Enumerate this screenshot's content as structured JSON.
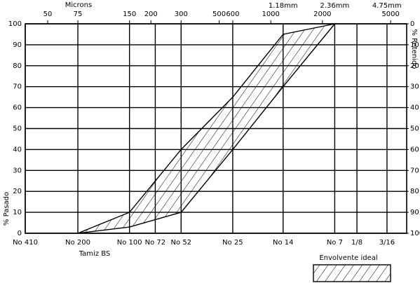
{
  "chart_data": {
    "type": "envelope",
    "x_title": "Microns",
    "x_bottom_title": "Tamiz BS",
    "y_title": "% Pasado",
    "y2_title": "% Retenido",
    "x": [
      75,
      150,
      300,
      600,
      1180,
      2360
    ],
    "series": [
      {
        "color": "#000000",
        "values": [
          0,
          10,
          40,
          65,
          95,
          100
        ]
      },
      {
        "color": "#000000",
        "values": [
          0,
          3,
          10,
          40,
          70,
          100
        ]
      }
    ],
    "area_label": "Envolvente ideal",
    "legend": "bottom-right",
    "log_x": true,
    "xlim": [
      37,
      6200
    ],
    "xticks": [
      {
        "value": 37,
        "label": "No 410"
      },
      {
        "value": 75,
        "label": "No 200"
      },
      {
        "value": 150,
        "label": "No 100"
      },
      {
        "value": 212,
        "label": "No 72"
      },
      {
        "value": 300,
        "label": "No 52"
      },
      {
        "value": 600,
        "label": "No 25"
      },
      {
        "value": 1180,
        "label": "No 14"
      },
      {
        "value": 2360,
        "label": "No 7"
      },
      {
        "value": 3180,
        "label": "1/8"
      },
      {
        "value": 4760,
        "label": "3/16"
      }
    ],
    "x2ticks": [
      50,
      75,
      150,
      200,
      300,
      500,
      600,
      1000,
      2000,
      5000
    ],
    "x3ticks": [
      {
        "value": 1180,
        "label": "1.18mm"
      },
      {
        "value": 2360,
        "label": "2.36mm"
      },
      {
        "value": 4750,
        "label": "4.75mm"
      }
    ],
    "ylim": [
      0,
      100
    ],
    "yticks": [
      0,
      10,
      20,
      30,
      40,
      50,
      60,
      70,
      80,
      90,
      100
    ],
    "y2lim": [
      100,
      0
    ],
    "y2ticks": [
      0,
      10,
      20,
      30,
      40,
      50,
      60,
      70,
      80,
      90,
      100
    ],
    "grid": true
  }
}
